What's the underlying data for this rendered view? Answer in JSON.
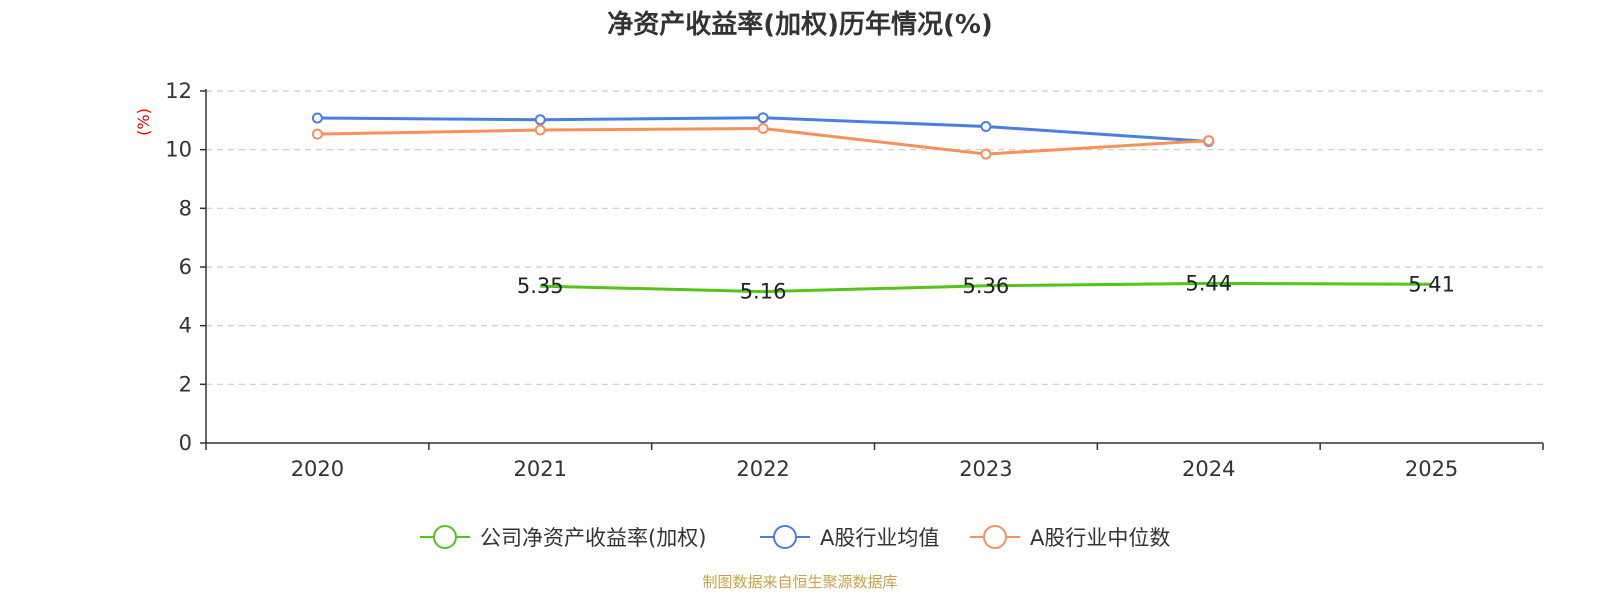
{
  "chart_data": {
    "type": "line",
    "title": "净资产收益率(加权)历年情况(%)",
    "ylabel": "(%)",
    "ylim": [
      0,
      12
    ],
    "yticks": [
      0,
      2,
      4,
      6,
      8,
      10,
      12
    ],
    "categories": [
      "2020",
      "2021",
      "2022",
      "2023",
      "2024",
      "2025"
    ],
    "grid": true,
    "legend_position": "bottom",
    "series": [
      {
        "name": "公司净资产收益率(加权)",
        "color": "#52c41a",
        "show_labels": true,
        "values": [
          null,
          5.35,
          5.16,
          5.36,
          5.44,
          5.41
        ],
        "labels": [
          "",
          "5.35",
          "5.16",
          "5.36",
          "5.44",
          "5.41"
        ]
      },
      {
        "name": "A股行业均值",
        "color": "#4a7fe0",
        "show_labels": false,
        "values": [
          11.08,
          11.02,
          11.09,
          10.79,
          10.28,
          null
        ]
      },
      {
        "name": "A股行业中位数",
        "color": "#f7905a",
        "show_labels": false,
        "values": [
          10.53,
          10.67,
          10.72,
          9.85,
          10.31,
          null
        ]
      }
    ],
    "source": "制图数据来自恒生聚源数据库",
    "unit_color": "#e00000",
    "source_color": "#c9a14a"
  }
}
